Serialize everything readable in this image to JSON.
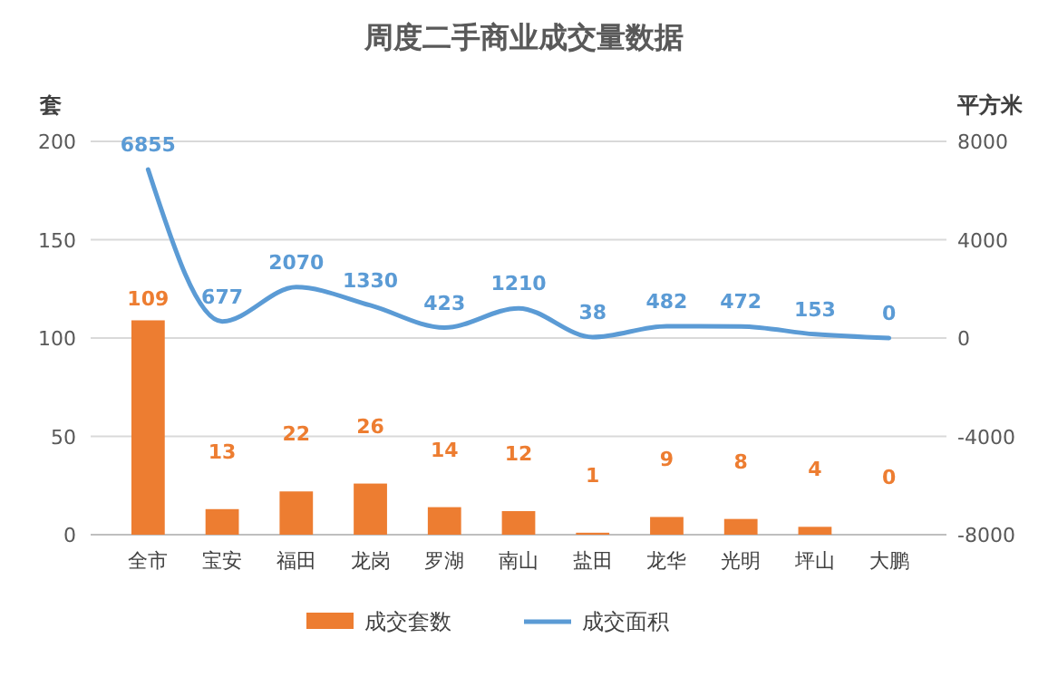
{
  "chart_data": {
    "type": "bar",
    "title": "周度二手商业成交量数据",
    "ylabel": "套",
    "y2label": "平方米",
    "categories": [
      "全市",
      "宝安",
      "福田",
      "龙岗",
      "罗湖",
      "南山",
      "盐田",
      "龙华",
      "光明",
      "坪山",
      "大鹏"
    ],
    "series": [
      {
        "name": "成交套数",
        "color": "#ed7d31",
        "values": [
          109,
          13,
          22,
          26,
          14,
          12,
          1,
          9,
          8,
          4,
          0
        ]
      },
      {
        "name": "成交面积",
        "type": "line",
        "axis": "y2",
        "color": "#5b9bd5",
        "values": [
          6855,
          677,
          2070,
          1330,
          423,
          1210,
          38,
          482,
          472,
          153,
          0
        ]
      }
    ],
    "ylim": [
      0,
      200
    ],
    "yticks": [
      0,
      50,
      100,
      150,
      200
    ],
    "y2lim": [
      -8000,
      8000
    ],
    "y2ticks": [
      -8000,
      -4000,
      0,
      4000,
      8000
    ],
    "grid": "y",
    "legend": "bottom",
    "data_labels": true,
    "marker": "none",
    "line_style": "solid"
  }
}
